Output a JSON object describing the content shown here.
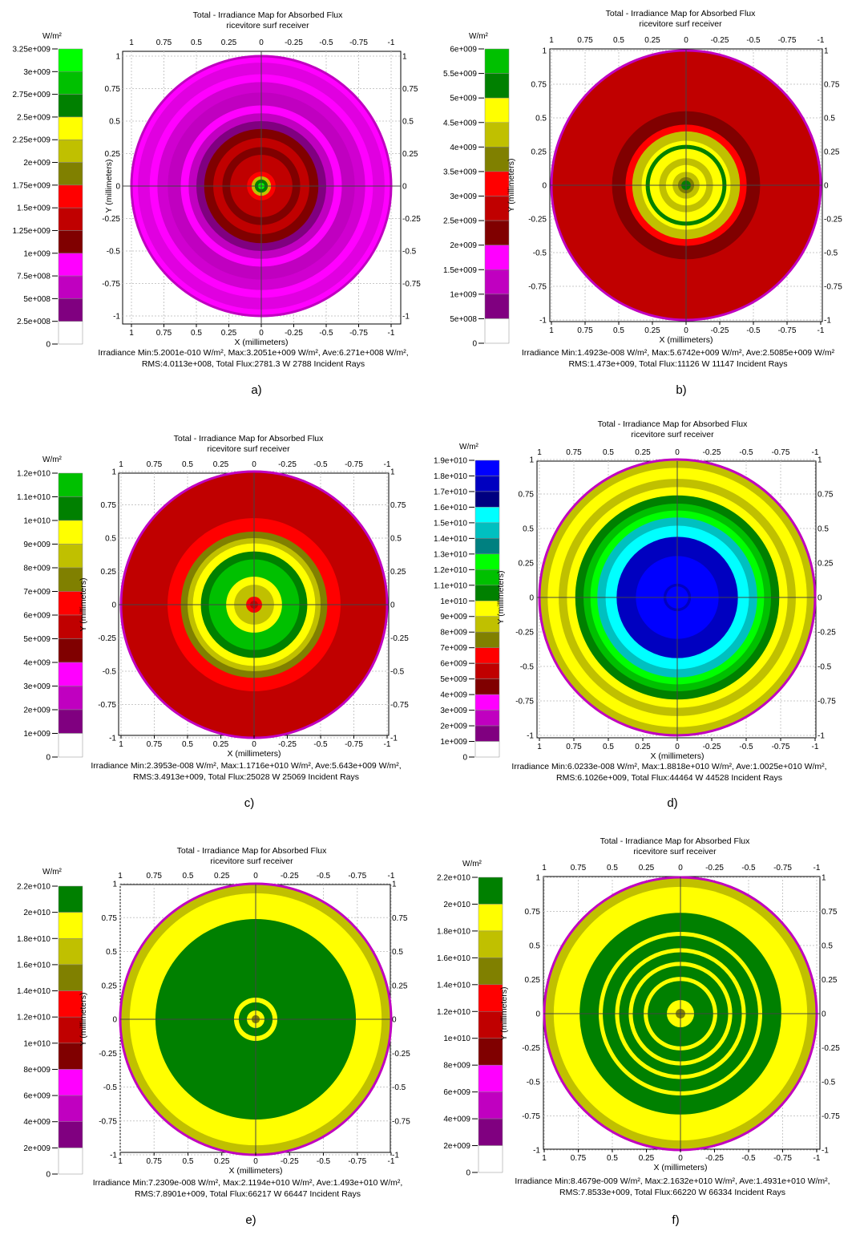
{
  "figure": {
    "unit_label": "W/m²",
    "title_line1": "Total - Irradiance Map for Absorbed Flux",
    "title_line2": "ricevitore surf receiver",
    "xlabel": "X (millimeters)",
    "ylabel": "Y (millimeters)",
    "axis_ticks": [
      "1",
      "0.75",
      "0.5",
      "0.25",
      "0",
      "-0.25",
      "-0.5",
      "-0.75",
      "-1"
    ],
    "axis_range": [
      -1,
      1
    ]
  },
  "colors": {
    "magenta": "#ff00ff",
    "purple_mid": "#c000c0",
    "purple_dark": "#800080",
    "red": "#ff0000",
    "red_mid": "#c00000",
    "red_dark": "#800000",
    "yellow": "#ffff00",
    "olive": "#c0c000",
    "olive_dark": "#808000",
    "green": "#00ff00",
    "green_mid": "#00c000",
    "green_dark": "#008000",
    "cyan": "#00ffff",
    "teal": "#00c0c0",
    "teal_dark": "#008080",
    "blue": "#0000ff",
    "blue_mid": "#0000c0",
    "blue_dark": "#000080"
  },
  "chart_data": [
    {
      "type": "heatmap",
      "panel_label": "a)",
      "title": "Total - Irradiance Map for Absorbed Flux",
      "subtitle": "ricevitore surf receiver",
      "xlabel": "X (millimeters)",
      "ylabel": "Y (millimeters)",
      "xlim": [
        1,
        -1
      ],
      "ylim": [
        -1,
        1
      ],
      "colorbar_unit": "W/m²",
      "colorbar_ticks": [
        "3.25e+009",
        "3e+009",
        "2.75e+009",
        "2.5e+009",
        "2.25e+009",
        "2e+009",
        "1.75e+009",
        "1.5e+009",
        "1.25e+009",
        "1e+009",
        "7.5e+008",
        "5e+008",
        "2.5e+008",
        "0"
      ],
      "colorbar_colors": [
        "#00ff00",
        "#00c000",
        "#008000",
        "#ffff00",
        "#c0c000",
        "#808000",
        "#ff0000",
        "#c00000",
        "#800000",
        "#ff00ff",
        "#c000c0",
        "#800080",
        "#ffffff"
      ],
      "rings": [
        {
          "r": 1.0,
          "color": "#ff00ff"
        },
        {
          "r": 0.95,
          "color": "#e000e0"
        },
        {
          "r": 0.86,
          "color": "#ff00ff"
        },
        {
          "r": 0.8,
          "color": "#d000d0"
        },
        {
          "r": 0.72,
          "color": "#c000c0"
        },
        {
          "r": 0.62,
          "color": "#ff00ff"
        },
        {
          "r": 0.56,
          "color": "#c000c0"
        },
        {
          "r": 0.5,
          "color": "#800080"
        },
        {
          "r": 0.44,
          "color": "#800000"
        },
        {
          "r": 0.37,
          "color": "#c00000"
        },
        {
          "r": 0.3,
          "color": "#800000"
        },
        {
          "r": 0.24,
          "color": "#c00000"
        },
        {
          "r": 0.16,
          "color": "#c00000"
        },
        {
          "r": 0.11,
          "color": "#ff0000"
        },
        {
          "r": 0.075,
          "color": "#c0c000"
        },
        {
          "r": 0.05,
          "color": "#008000"
        },
        {
          "r": 0.025,
          "color": "#00ff00"
        }
      ],
      "stats_line1": "Irradiance Min:5.2001e-010 W/m², Max:3.2051e+009 W/m², Ave:6.271e+008 W/m²,",
      "stats_line2": "RMS:4.0113e+008, Total Flux:2781.3 W 2788 Incident Rays"
    },
    {
      "type": "heatmap",
      "panel_label": "b)",
      "title": "Total - Irradiance Map for Absorbed Flux",
      "subtitle": "ricevitore surf receiver",
      "xlabel": "X (millimeters)",
      "ylabel": "Y (millimeters)",
      "xlim": [
        1,
        -1
      ],
      "ylim": [
        -1,
        1
      ],
      "colorbar_unit": "W/m²",
      "colorbar_ticks": [
        "6e+009",
        "5.5e+009",
        "5e+009",
        "4.5e+009",
        "4e+009",
        "3.5e+009",
        "3e+009",
        "2.5e+009",
        "2e+009",
        "1.5e+009",
        "1e+009",
        "5e+008",
        "0"
      ],
      "colorbar_colors": [
        "#00c000",
        "#008000",
        "#ffff00",
        "#c0c000",
        "#808000",
        "#ff0000",
        "#c00000",
        "#800000",
        "#ff00ff",
        "#c000c0",
        "#800080",
        "#ffffff"
      ],
      "rings": [
        {
          "r": 1.0,
          "color": "#c00000"
        },
        {
          "r": 0.6,
          "color": "#c00000"
        },
        {
          "r": 0.55,
          "color": "#800000"
        },
        {
          "r": 0.45,
          "color": "#ff0000"
        },
        {
          "r": 0.4,
          "color": "#c0c000"
        },
        {
          "r": 0.33,
          "color": "#ffff00"
        },
        {
          "r": 0.3,
          "color": "#008000"
        },
        {
          "r": 0.27,
          "color": "#ffff00"
        },
        {
          "r": 0.2,
          "color": "#c0c000"
        },
        {
          "r": 0.15,
          "color": "#ffff00"
        },
        {
          "r": 0.1,
          "color": "#c0c000"
        },
        {
          "r": 0.06,
          "color": "#808000"
        },
        {
          "r": 0.035,
          "color": "#008000"
        }
      ],
      "stats_line1": "Irradiance Min:1.4923e-008 W/m², Max:5.6742e+009 W/m², Ave:2.5085e+009 W/m²",
      "stats_line2": "RMS:1.473e+009, Total Flux:11126 W 11147 Incident Rays"
    },
    {
      "type": "heatmap",
      "panel_label": "c)",
      "title": "Total - Irradiance Map for Absorbed Flux",
      "subtitle": "ricevitore surf receiver",
      "xlabel": "X (millimeters)",
      "ylabel": "Y (millimeters)",
      "xlim": [
        1,
        -1
      ],
      "ylim": [
        -1,
        1
      ],
      "colorbar_unit": "W/m²",
      "colorbar_ticks": [
        "1.2e+010",
        "1.1e+010",
        "1e+010",
        "9e+009",
        "8e+009",
        "7e+009",
        "6e+009",
        "5e+009",
        "4e+009",
        "3e+009",
        "2e+009",
        "1e+009",
        "0"
      ],
      "colorbar_colors": [
        "#00c000",
        "#008000",
        "#ffff00",
        "#c0c000",
        "#808000",
        "#ff0000",
        "#c00000",
        "#800000",
        "#ff00ff",
        "#c000c0",
        "#800080",
        "#ffffff"
      ],
      "rings": [
        {
          "r": 1.0,
          "color": "#c00000"
        },
        {
          "r": 0.65,
          "color": "#ff0000"
        },
        {
          "r": 0.55,
          "color": "#808000"
        },
        {
          "r": 0.5,
          "color": "#c0c000"
        },
        {
          "r": 0.46,
          "color": "#ffff00"
        },
        {
          "r": 0.4,
          "color": "#008000"
        },
        {
          "r": 0.34,
          "color": "#00c000"
        },
        {
          "r": 0.21,
          "color": "#ffff00"
        },
        {
          "r": 0.15,
          "color": "#c0c000"
        },
        {
          "r": 0.06,
          "color": "#ff0000"
        },
        {
          "r": 0.03,
          "color": "#c00000"
        }
      ],
      "stats_line1": "Irradiance Min:2.3953e-008 W/m², Max:1.1716e+010 W/m², Ave:5.643e+009 W/m²,",
      "stats_line2": "RMS:3.4913e+009, Total Flux:25028 W 25069 Incident Rays"
    },
    {
      "type": "heatmap",
      "panel_label": "d)",
      "title": "Total - Irradiance Map for Absorbed Flux",
      "subtitle": "ricevitore surf receiver",
      "xlabel": "X (millimeters)",
      "ylabel": "Y (millimeters)",
      "xlim": [
        1,
        -1
      ],
      "ylim": [
        -1,
        1
      ],
      "colorbar_unit": "W/m²",
      "colorbar_ticks": [
        "1.9e+010",
        "1.8e+010",
        "1.7e+010",
        "1.6e+010",
        "1.5e+010",
        "1.4e+010",
        "1.3e+010",
        "1.2e+010",
        "1.1e+010",
        "1e+010",
        "9e+009",
        "8e+009",
        "7e+009",
        "6e+009",
        "5e+009",
        "4e+009",
        "3e+009",
        "2e+009",
        "1e+009",
        "0"
      ],
      "colorbar_colors": [
        "#0000ff",
        "#0000c0",
        "#000080",
        "#00ffff",
        "#00c0c0",
        "#008080",
        "#00ff00",
        "#00c000",
        "#008000",
        "#ffff00",
        "#c0c000",
        "#808000",
        "#ff0000",
        "#c00000",
        "#800000",
        "#ff00ff",
        "#c000c0",
        "#800080",
        "#ffffff"
      ],
      "rings": [
        {
          "r": 1.0,
          "color": "#c0c000"
        },
        {
          "r": 0.94,
          "color": "#ffff00"
        },
        {
          "r": 0.86,
          "color": "#c0c000"
        },
        {
          "r": 0.8,
          "color": "#ffff00"
        },
        {
          "r": 0.74,
          "color": "#008000"
        },
        {
          "r": 0.68,
          "color": "#00c000"
        },
        {
          "r": 0.63,
          "color": "#00ff00"
        },
        {
          "r": 0.58,
          "color": "#00c0c0"
        },
        {
          "r": 0.52,
          "color": "#00ffff"
        },
        {
          "r": 0.44,
          "color": "#0000c0"
        },
        {
          "r": 0.3,
          "color": "#0000ff"
        },
        {
          "r": 0.1,
          "color": "#0000c0"
        },
        {
          "r": 0.08,
          "color": "#0000ff"
        }
      ],
      "stats_line1": "Irradiance Min:6.0233e-008 W/m², Max:1.8818e+010 W/m², Ave:1.0025e+010 W/m²,",
      "stats_line2": "RMS:6.1026e+009, Total Flux:44464 W 44528 Incident Rays"
    },
    {
      "type": "heatmap",
      "panel_label": "e)",
      "title": "Total - Irradiance Map for Absorbed Flux",
      "subtitle": "ricevitore surf receiver",
      "xlabel": "X (millimeters)",
      "ylabel": "Y (millimeters)",
      "xlim": [
        1,
        -1
      ],
      "ylim": [
        -1,
        1
      ],
      "colorbar_unit": "W/m²",
      "colorbar_ticks": [
        "2.2e+010",
        "2e+010",
        "1.8e+010",
        "1.6e+010",
        "1.4e+010",
        "1.2e+010",
        "1e+010",
        "8e+009",
        "6e+009",
        "4e+009",
        "2e+009",
        "0"
      ],
      "colorbar_colors": [
        "#008000",
        "#ffff00",
        "#c0c000",
        "#808000",
        "#ff0000",
        "#c00000",
        "#800000",
        "#ff00ff",
        "#c000c0",
        "#800080",
        "#ffffff"
      ],
      "rings": [
        {
          "r": 1.0,
          "color": "#c0c000"
        },
        {
          "r": 0.93,
          "color": "#ffff00"
        },
        {
          "r": 0.74,
          "color": "#008000"
        },
        {
          "r": 0.16,
          "color": "#ffff00"
        },
        {
          "r": 0.125,
          "color": "#008000"
        },
        {
          "r": 0.065,
          "color": "#ffff00"
        },
        {
          "r": 0.03,
          "color": "#808000"
        }
      ],
      "stats_line1": "Irradiance Min:7.2309e-008 W/m², Max:2.1194e+010 W/m², Ave:1.493e+010 W/m²,",
      "stats_line2": "RMS:7.8901e+009, Total Flux:66217 W 66447 Incident Rays"
    },
    {
      "type": "heatmap",
      "panel_label": "f)",
      "title": "Total - Irradiance Map for Absorbed Flux",
      "subtitle": "ricevitore surf receiver",
      "xlabel": "X (millimeters)",
      "ylabel": "Y (millimeters)",
      "xlim": [
        1,
        -1
      ],
      "ylim": [
        -1,
        1
      ],
      "colorbar_unit": "W/m²",
      "colorbar_ticks": [
        "2.2e+010",
        "2e+010",
        "1.8e+010",
        "1.6e+010",
        "1.4e+010",
        "1.2e+010",
        "1e+010",
        "8e+009",
        "6e+009",
        "4e+009",
        "2e+009",
        "0"
      ],
      "colorbar_colors": [
        "#008000",
        "#ffff00",
        "#c0c000",
        "#808000",
        "#ff0000",
        "#c00000",
        "#800000",
        "#ff00ff",
        "#c000c0",
        "#800080",
        "#ffffff"
      ],
      "rings": [
        {
          "r": 1.0,
          "color": "#c0c000"
        },
        {
          "r": 0.93,
          "color": "#ffff00"
        },
        {
          "r": 0.74,
          "color": "#008000"
        },
        {
          "r": 0.6,
          "color": "#ffff00"
        },
        {
          "r": 0.57,
          "color": "#008000"
        },
        {
          "r": 0.48,
          "color": "#ffff00"
        },
        {
          "r": 0.45,
          "color": "#008000"
        },
        {
          "r": 0.38,
          "color": "#ffff00"
        },
        {
          "r": 0.35,
          "color": "#008000"
        },
        {
          "r": 0.27,
          "color": "#ffff00"
        },
        {
          "r": 0.24,
          "color": "#008000"
        },
        {
          "r": 0.1,
          "color": "#ffff00"
        },
        {
          "r": 0.035,
          "color": "#808000"
        }
      ],
      "stats_line1": "Irradiance Min:8.4679e-009 W/m², Max:2.1632e+010 W/m², Ave:1.4931e+010 W/m²,",
      "stats_line2": "RMS:7.8533e+009, Total Flux:66220 W 66334 Incident Rays"
    }
  ]
}
